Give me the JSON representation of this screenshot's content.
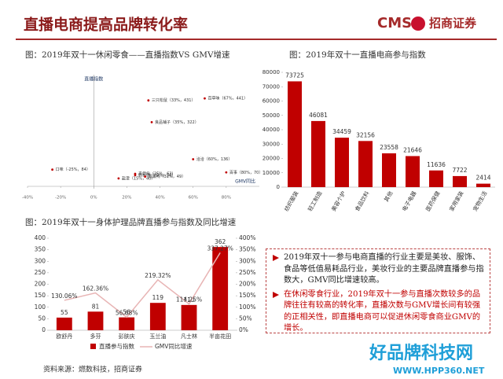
{
  "header": {
    "title": "直播电商提高品牌转化率",
    "logo": "CMS",
    "brand": "招商证券"
  },
  "chart_data": [
    {
      "type": "scatter",
      "title": "图：2019年双十一休闲零食——直播指数VS GMV增速",
      "y_label": "直播指数",
      "x_label": "GMV同比",
      "xlim": [
        -40,
        100
      ],
      "ylim": [
        0,
        560
      ],
      "xticks": [
        {
          "value": -40,
          "label": "-40%"
        },
        {
          "value": -20,
          "label": "-20%"
        },
        {
          "value": 0,
          "label": "0%"
        },
        {
          "value": 20,
          "label": "20%"
        },
        {
          "value": 40,
          "label": "40%"
        },
        {
          "value": 60,
          "label": "60%"
        },
        {
          "value": 80,
          "label": "80%"
        }
      ],
      "color": "#c00000",
      "x": [
        33,
        67,
        35,
        60,
        25,
        25,
        31,
        15,
        80,
        -25
      ],
      "values": [
        431,
        441,
        322,
        136,
        63,
        56,
        49,
        40,
        70,
        84
      ],
      "point_labels": [
        "三只松鼠（33%，431）",
        "百草味（67%，441）",
        "良品铺子（35%，322）",
        "洽洽（60%，136）",
        "来伊份（25%，63）",
        "好想你（25%，56）",
        "周黑鸭（31%，49）",
        "盐津（15%，40）",
        "百事（80%，70）",
        "口味（-25%，84）"
      ]
    },
    {
      "type": "bar",
      "title": "图：2019年双十一直播电商参与指数",
      "color": "#c00000",
      "categories": [
        "纺织服装",
        "轻工制造",
        "美容个护",
        "食品饮料",
        "其他",
        "电子电器",
        "医药保健",
        "家用家装",
        "宠物生活"
      ],
      "values": [
        73725,
        46081,
        34459,
        32156,
        23558,
        21646,
        11636,
        7722,
        2414
      ],
      "ylim": [
        0,
        80000
      ],
      "yticks": [
        0,
        10000,
        20000,
        30000,
        40000,
        50000,
        60000,
        70000,
        80000
      ]
    },
    {
      "type": "bar_line",
      "title": "图：2019年双十一身体护理品牌直播参与指数及同比增速",
      "categories": [
        "欧舒丹",
        "多芬",
        "彭肤庆",
        "玉兰油",
        "凡士林",
        "半亩花田"
      ],
      "series": [
        {
          "name": "直播参与指数",
          "color": "#c00000",
          "values": [
            55,
            81,
            56,
            119,
            110,
            362
          ]
        },
        {
          "name": "GMV同比增速",
          "color": "#e8b4b4",
          "axis": "y2",
          "values": [
            130.06,
            162.36,
            56.68,
            219.32,
            114.25,
            337.27
          ],
          "value_labels": [
            "130.06%",
            "162.36%",
            "56.68%",
            "219.32%",
            "114.25%",
            "337.27%"
          ]
        }
      ],
      "ylim": [
        0,
        400
      ],
      "yticks": [
        0,
        50,
        100,
        150,
        200,
        250,
        300,
        350,
        400
      ],
      "y2lim": [
        0,
        400
      ],
      "y2ticks": [
        {
          "value": 0,
          "label": "0%"
        },
        {
          "value": 50,
          "label": "50%"
        },
        {
          "value": 100,
          "label": "100%"
        },
        {
          "value": 150,
          "label": "150%"
        },
        {
          "value": 200,
          "label": "200%"
        },
        {
          "value": 250,
          "label": "250%"
        },
        {
          "value": 300,
          "label": "300%"
        },
        {
          "value": 350,
          "label": "350%"
        },
        {
          "value": 400,
          "label": "400%"
        }
      ]
    }
  ],
  "notes": [
    "2019年双十一参与电商直播的行业主要是美妆、服饰、食品等低值易耗品行业，美妆行业的主要品牌直播参与指数大，GMV同比增速较高。",
    "在休闲零食行业，2019年双十一参与直播次数较多的品牌往往有较高的转化率，直播次数与GMV增长间有较强的正相关性，即直播电商可以促进休闲零食商业GMV的增长。"
  ],
  "source": "资料来源：燃数科技，招商证券",
  "watermark": {
    "name": "好品牌科技网",
    "url": "WWW.HPP360.NET"
  }
}
